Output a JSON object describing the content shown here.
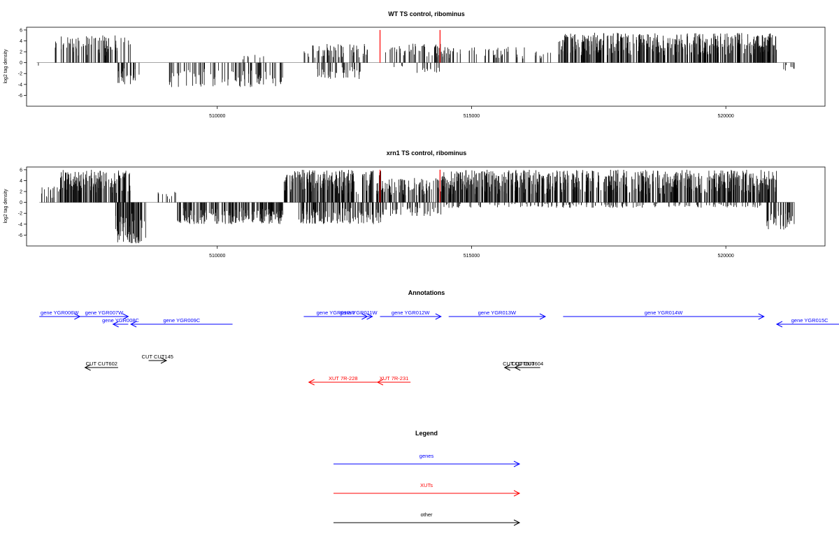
{
  "chart_data": [
    {
      "type": "bar",
      "id": "wt",
      "title": "WT TS control, ribominus",
      "ylabel": "log2 tag density",
      "xlabel": "",
      "xlim": [
        506250,
        521950
      ],
      "ylim": [
        -8,
        6.5
      ],
      "yticks": [
        6,
        4,
        2,
        0,
        -2,
        -4,
        -6
      ],
      "xticks": [
        510000,
        515000,
        520000
      ],
      "grid": false,
      "highlight_positions": [
        513200,
        514380
      ],
      "profile": [
        {
          "from": 506450,
          "to": 506500,
          "min": -1,
          "max": 0
        },
        {
          "from": 506800,
          "to": 508300,
          "min": 0,
          "max": 5,
          "density": 14
        },
        {
          "from": 508000,
          "to": 508500,
          "min": -4,
          "max": 0,
          "density": 14
        },
        {
          "from": 509000,
          "to": 511300,
          "min": -4.5,
          "max": 0,
          "density": 10
        },
        {
          "from": 510500,
          "to": 511000,
          "min": 0,
          "max": 1.5,
          "density": 4
        },
        {
          "from": 511700,
          "to": 513000,
          "min": 0,
          "max": 3.5,
          "density": 12
        },
        {
          "from": 511900,
          "to": 512900,
          "min": -3,
          "max": 0,
          "density": 10
        },
        {
          "from": 513300,
          "to": 514400,
          "min": 0,
          "max": 3.5,
          "density": 12
        },
        {
          "from": 513400,
          "to": 514400,
          "min": -2,
          "max": 0,
          "density": 4
        },
        {
          "from": 514400,
          "to": 516600,
          "min": 0,
          "max": 3,
          "density": 8
        },
        {
          "from": 516700,
          "to": 521000,
          "min": 0,
          "max": 5.5,
          "density": 28
        },
        {
          "from": 521100,
          "to": 521350,
          "min": -1.5,
          "max": 0,
          "density": 8
        }
      ]
    },
    {
      "type": "bar",
      "id": "xrn1",
      "title": "xrn1 TS control, ribominus",
      "ylabel": "log2 tag density",
      "xlabel": "",
      "xlim": [
        506250,
        521950
      ],
      "ylim": [
        -8,
        6.5
      ],
      "yticks": [
        6,
        4,
        2,
        0,
        -2,
        -4,
        -6
      ],
      "xticks": [
        510000,
        515000,
        520000
      ],
      "grid": false,
      "highlight_positions": [
        513200,
        514380
      ],
      "profile": [
        {
          "from": 506500,
          "to": 506900,
          "min": -1,
          "max": 3,
          "density": 10
        },
        {
          "from": 506900,
          "to": 508300,
          "min": 0,
          "max": 6,
          "density": 30
        },
        {
          "from": 508000,
          "to": 508600,
          "min": -7.5,
          "max": 0,
          "density": 30
        },
        {
          "from": 508800,
          "to": 509200,
          "min": 0,
          "max": 2,
          "density": 6
        },
        {
          "from": 509200,
          "to": 511300,
          "min": -4,
          "max": 0,
          "density": 24
        },
        {
          "from": 511300,
          "to": 513300,
          "min": 0,
          "max": 6,
          "density": 28
        },
        {
          "from": 511600,
          "to": 513300,
          "min": -4,
          "max": 0,
          "density": 20
        },
        {
          "from": 513300,
          "to": 514400,
          "min": 0,
          "max": 4.5,
          "density": 18
        },
        {
          "from": 513300,
          "to": 514400,
          "min": -2.5,
          "max": 0,
          "density": 10
        },
        {
          "from": 514400,
          "to": 521000,
          "min": 0,
          "max": 6,
          "density": 28
        },
        {
          "from": 514400,
          "to": 520800,
          "min": -1,
          "max": 0,
          "density": 6
        },
        {
          "from": 520800,
          "to": 521350,
          "min": -5,
          "max": 0,
          "density": 20
        }
      ]
    },
    {
      "type": "annotation-track",
      "id": "annotations",
      "title": "Annotations",
      "features": [
        {
          "label": "gene YGR006W",
          "category": "genes",
          "start": 506500,
          "end": 507300,
          "row": 0
        },
        {
          "label": "gene YGR007W",
          "category": "genes",
          "start": 507300,
          "end": 508250,
          "row": 0
        },
        {
          "label": "gene YGR008C",
          "category": "genes",
          "start": 508250,
          "end": 507950,
          "row": 1
        },
        {
          "label": "gene YGR009C",
          "category": "genes",
          "start": 510300,
          "end": 508300,
          "row": 1
        },
        {
          "label": "gene YGR010W",
          "category": "genes",
          "start": 511700,
          "end": 512950,
          "row": 0
        },
        {
          "label": "gene YGR011W",
          "category": "genes",
          "start": 512500,
          "end": 513050,
          "row": 0
        },
        {
          "label": "gene YGR012W",
          "category": "genes",
          "start": 513200,
          "end": 514400,
          "row": 0
        },
        {
          "label": "gene YGR013W",
          "category": "genes",
          "start": 514550,
          "end": 516450,
          "row": 0
        },
        {
          "label": "gene YGR014W",
          "category": "genes",
          "start": 516800,
          "end": 520750,
          "row": 0
        },
        {
          "label": "gene YGR015C",
          "category": "genes",
          "start": 522300,
          "end": 521000,
          "row": 1
        },
        {
          "label": "CUT CUT602",
          "category": "other",
          "start": 508050,
          "end": 507400,
          "row": 2
        },
        {
          "label": "CUT CUT145",
          "category": "other",
          "start": 508650,
          "end": 509000,
          "row": 3
        },
        {
          "label": "CUT CUT603",
          "category": "other",
          "start": 516200,
          "end": 515650,
          "row": 2
        },
        {
          "label": "CUT CUT604",
          "category": "other",
          "start": 516350,
          "end": 515850,
          "row": 2
        },
        {
          "label": "XUT 7R-228",
          "category": "XUTs",
          "start": 513150,
          "end": 511800,
          "row": 4
        },
        {
          "label": "XUT 7R-231",
          "category": "XUTs",
          "start": 513800,
          "end": 513150,
          "row": 4
        }
      ]
    },
    {
      "type": "legend",
      "id": "legend",
      "title": "Legend",
      "entries": [
        {
          "label": "genes",
          "color": "#0000ff"
        },
        {
          "label": "XUTs",
          "color": "#ff0000"
        },
        {
          "label": "other",
          "color": "#000000"
        }
      ]
    }
  ],
  "colors": {
    "genes": "#0000ff",
    "XUTs": "#ff0000",
    "other": "#000000",
    "highlight": "#ff0000",
    "bars": "#000000",
    "baseline": "#888888"
  }
}
